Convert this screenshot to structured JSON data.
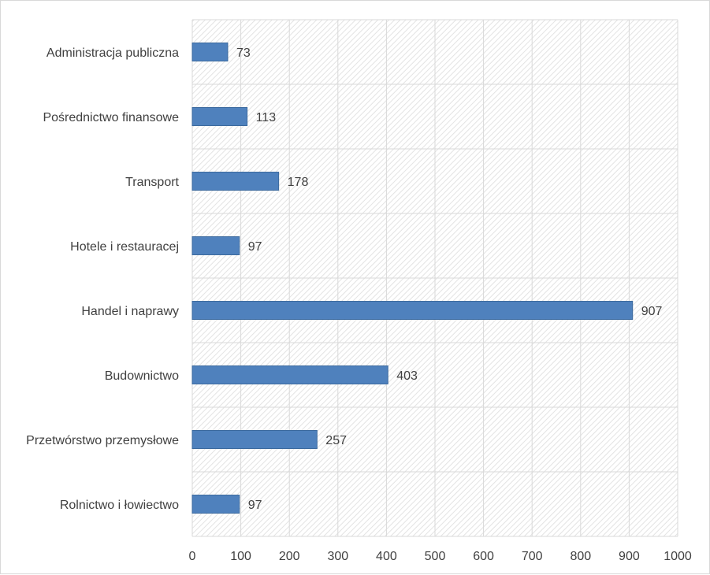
{
  "chart_data": {
    "type": "bar",
    "orientation": "horizontal",
    "title": "",
    "xlabel": "",
    "ylabel": "",
    "categories": [
      "Administracja publiczna",
      "Pośrednictwo finansowe",
      "Transport",
      "Hotele i restauracej",
      "Handel i naprawy",
      "Budownictwo",
      "Przetwórstwo przemysłowe",
      "Rolnictwo i łowiectwo"
    ],
    "values": [
      73,
      113,
      178,
      97,
      907,
      403,
      257,
      97
    ],
    "data_labels": [
      "73",
      "113",
      "178",
      "97",
      "907",
      "403",
      "257",
      "97"
    ],
    "xlim": [
      0,
      1000
    ],
    "xticks": [
      0,
      100,
      200,
      300,
      400,
      500,
      600,
      700,
      800,
      900,
      1000
    ],
    "xtick_labels": [
      "0",
      "100",
      "200",
      "300",
      "400",
      "500",
      "600",
      "700",
      "800",
      "900",
      "1000"
    ],
    "grid": true,
    "plot_background": "hatched light gray",
    "colors": {
      "bar": "#4f81bd",
      "bar_border": "#3c6a9e",
      "grid": "#d9d9d9",
      "hatch": "#e0e0e0",
      "text": "#404040",
      "frame": "#d9d9d9"
    }
  }
}
